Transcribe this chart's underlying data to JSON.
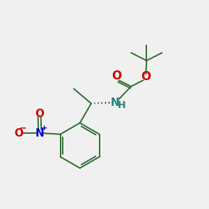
{
  "bg_color": "#f0f0f0",
  "bond_color": "#2d6b2d",
  "O_color": "#cc0000",
  "N_boc_color": "#2d8080",
  "N_no2_color": "#0000cc",
  "figsize": [
    3.0,
    3.0
  ],
  "dpi": 100,
  "xlim": [
    0,
    10
  ],
  "ylim": [
    0,
    10
  ]
}
